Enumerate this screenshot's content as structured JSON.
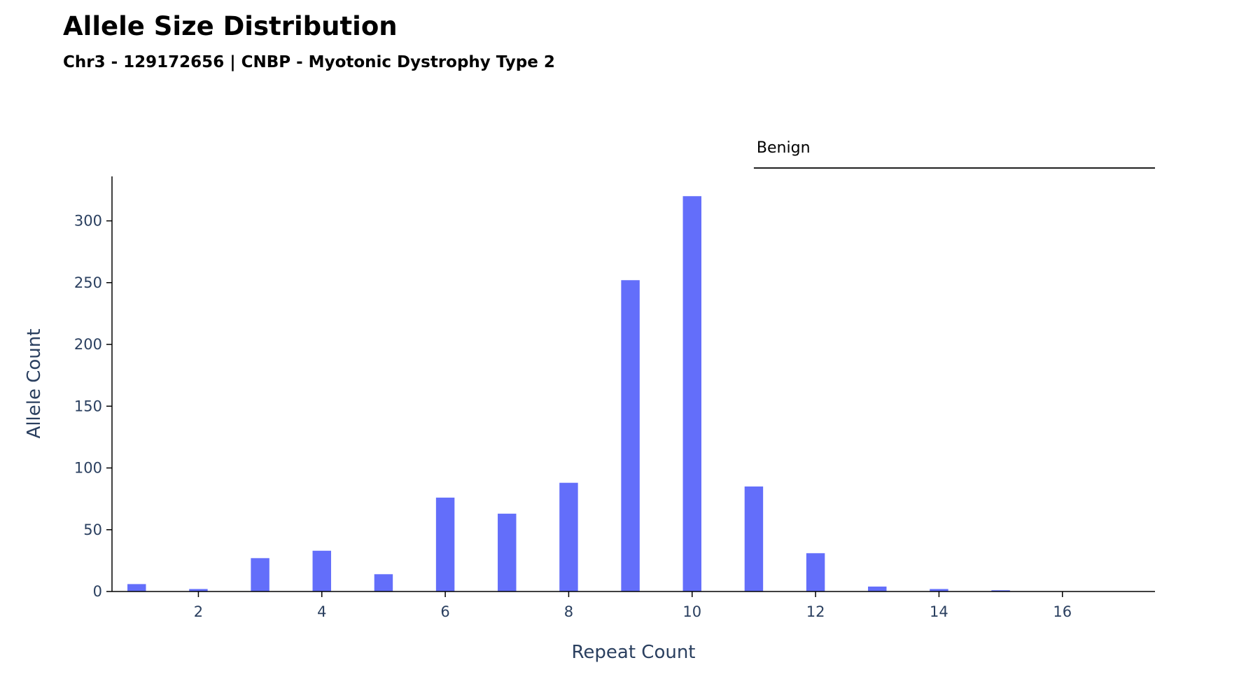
{
  "chart_data": {
    "type": "bar",
    "title": "Allele Size Distribution",
    "subtitle": "Chr3 - 129172656 | CNBP - Myotonic Dystrophy Type 2",
    "xlabel": "Repeat Count",
    "ylabel": "Allele Count",
    "x": [
      1,
      2,
      3,
      4,
      5,
      6,
      7,
      8,
      9,
      10,
      11,
      12,
      13,
      14,
      15
    ],
    "values": [
      6,
      2,
      27,
      33,
      14,
      76,
      63,
      88,
      252,
      320,
      85,
      31,
      4,
      2,
      1
    ],
    "xlim": [
      0.6,
      17.5
    ],
    "ylim": [
      0,
      336
    ],
    "xticks": [
      2,
      4,
      6,
      8,
      10,
      12,
      14,
      16
    ],
    "yticks": [
      0,
      50,
      100,
      150,
      200,
      250,
      300
    ],
    "grid": false,
    "bar_color": "#636efa",
    "annotations": [
      {
        "label": "Benign",
        "x_start": 11,
        "x_end": 17.5
      }
    ]
  }
}
